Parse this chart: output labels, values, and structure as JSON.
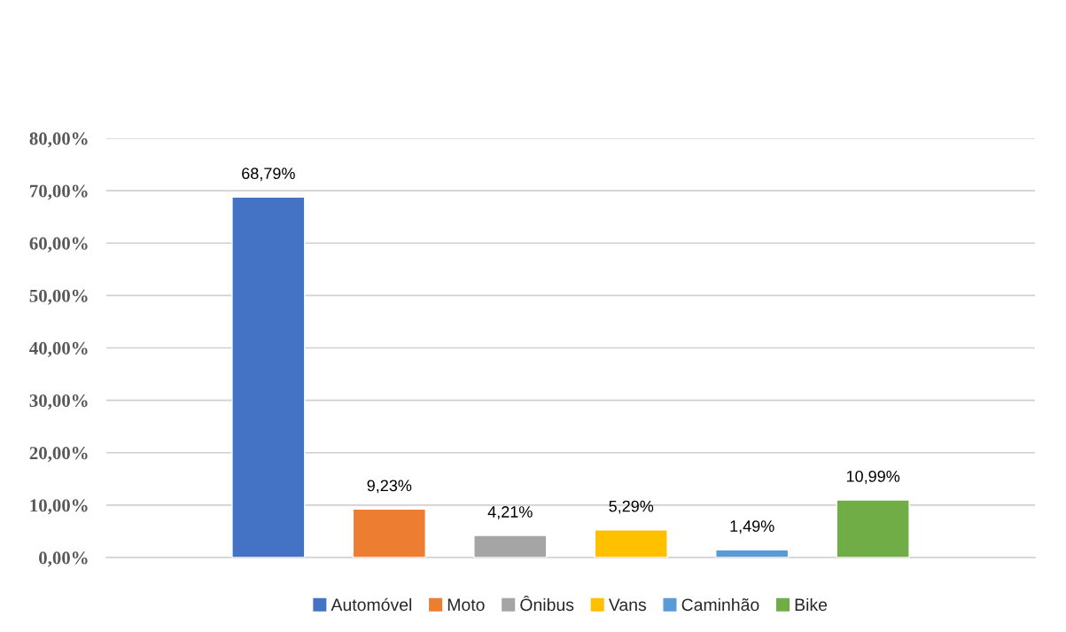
{
  "chart_data": {
    "type": "bar",
    "categories": [
      null
    ],
    "series": [
      {
        "name": "Automóvel",
        "color": "#4472c4",
        "values": [
          68.79
        ],
        "value_labels": [
          "68,79%"
        ]
      },
      {
        "name": "Moto",
        "color": "#ed7d31",
        "values": [
          9.23
        ],
        "value_labels": [
          "9,23%"
        ]
      },
      {
        "name": "Ônibus",
        "color": "#a5a5a5",
        "values": [
          4.21
        ],
        "value_labels": [
          "4,21%"
        ]
      },
      {
        "name": "Vans",
        "color": "#ffc000",
        "values": [
          5.29
        ],
        "value_labels": [
          "5,29%"
        ]
      },
      {
        "name": "Caminhão",
        "color": "#5b9bd5",
        "values": [
          1.49
        ],
        "value_labels": [
          "1,49%"
        ]
      },
      {
        "name": "Bike",
        "color": "#70ad47",
        "values": [
          10.99
        ],
        "value_labels": [
          "10,99%"
        ]
      }
    ],
    "ylim": [
      0,
      80
    ],
    "yticks": [
      {
        "value": 0,
        "label": "0,00%"
      },
      {
        "value": 10,
        "label": "10,00%"
      },
      {
        "value": 20,
        "label": "20,00%"
      },
      {
        "value": 30,
        "label": "30,00%"
      },
      {
        "value": 40,
        "label": "40,00%"
      },
      {
        "value": 50,
        "label": "50,00%"
      },
      {
        "value": 60,
        "label": "60,00%"
      },
      {
        "value": 70,
        "label": "70,00%"
      },
      {
        "value": 80,
        "label": "80,00%"
      }
    ],
    "grid": "y",
    "legend": "bottom"
  }
}
